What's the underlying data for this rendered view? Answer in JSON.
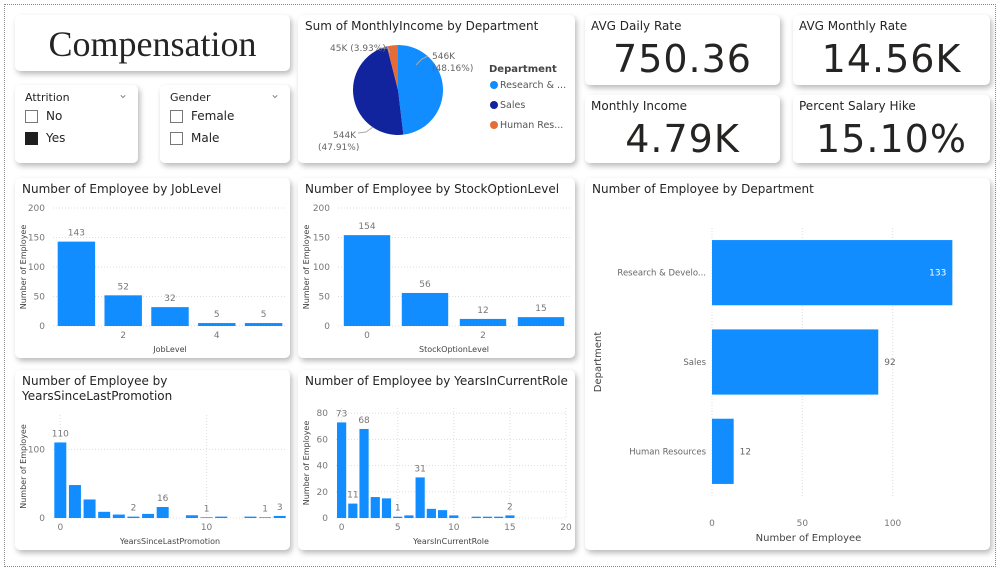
{
  "title": "Compensation",
  "slicers": [
    {
      "title": "Attrition",
      "options": [
        {
          "label": "No",
          "checked": false
        },
        {
          "label": "Yes",
          "checked": true
        }
      ]
    },
    {
      "title": "Gender",
      "options": [
        {
          "label": "Female",
          "checked": false
        },
        {
          "label": "Male",
          "checked": false
        }
      ]
    }
  ],
  "kpis": [
    {
      "label": "AVG Daily Rate",
      "value": "750.36"
    },
    {
      "label": "AVG Monthly Rate",
      "value": "14.56K"
    },
    {
      "label": "Monthly Income",
      "value": "4.79K"
    },
    {
      "label": "Percent Salary Hike",
      "value": "15.10%"
    }
  ],
  "colors": {
    "bar": "#118DFF",
    "research": "#118DFF",
    "sales": "#12239E",
    "hr": "#E66C37"
  },
  "chart_data": [
    {
      "id": "pie",
      "type": "pie",
      "title": "Sum of MonthlyIncome by Department",
      "legend_title": "Department",
      "legend_position": "right",
      "slices": [
        {
          "name": "Research & ...",
          "value": 546,
          "label": "546K",
          "pct": "(48.16%)",
          "color": "#118DFF"
        },
        {
          "name": "Sales",
          "value": 544,
          "label": "544K",
          "pct": "(47.91%)",
          "color": "#12239E"
        },
        {
          "name": "Human Res...",
          "value": 45,
          "label": "45K (3.93%)",
          "pct": "",
          "color": "#E66C37"
        }
      ]
    },
    {
      "id": "joblevel",
      "type": "bar",
      "title": "Number of Employee by JobLevel",
      "xlabel": "JobLevel",
      "ylabel": "Number of Employee",
      "x": [
        1,
        2,
        3,
        4,
        5
      ],
      "values": [
        143,
        52,
        32,
        5,
        5
      ],
      "data_labels": [
        "143",
        "52",
        "32",
        "5",
        "5"
      ],
      "xticks": [
        2,
        4
      ],
      "yticks": [
        0,
        50,
        100,
        150,
        200
      ],
      "ylim": [
        0,
        200
      ],
      "grid": true
    },
    {
      "id": "stock",
      "type": "bar",
      "title": "Number of Employee by StockOptionLevel",
      "xlabel": "StockOptionLevel",
      "ylabel": "Number of Employee",
      "x": [
        0,
        1,
        2,
        3
      ],
      "values": [
        154,
        56,
        12,
        15
      ],
      "data_labels": [
        "154",
        "56",
        "12",
        "15"
      ],
      "xticks": [
        0,
        2
      ],
      "yticks": [
        0,
        50,
        100,
        150,
        200
      ],
      "ylim": [
        0,
        200
      ],
      "grid": true
    },
    {
      "id": "promotion",
      "type": "bar",
      "title": "Number of Employee by YearsSinceLastPromotion",
      "xlabel": "YearsSinceLastPromotion",
      "ylabel": "Number of Employee",
      "x": [
        0,
        1,
        2,
        3,
        4,
        5,
        6,
        7,
        9,
        10,
        11,
        13,
        14,
        15
      ],
      "values": [
        110,
        48,
        27,
        9,
        5,
        2,
        6,
        16,
        4,
        1,
        2,
        2,
        1,
        3
      ],
      "data_labels": [
        "110",
        "",
        "",
        "",
        "",
        "2",
        "",
        "16",
        "",
        "1",
        "",
        "",
        "1",
        "3"
      ],
      "xticks": [
        0,
        10
      ],
      "yticks": [
        0,
        100
      ],
      "ylim": [
        0,
        150
      ],
      "xlim": [
        -0.5,
        15.5
      ],
      "grid": true
    },
    {
      "id": "role",
      "type": "bar",
      "title": "Number of Employee by YearsInCurrentRole",
      "xlabel": "YearsInCurrentRole",
      "ylabel": "Number of Employee",
      "x": [
        0,
        1,
        2,
        3,
        4,
        5,
        6,
        7,
        8,
        9,
        10,
        12,
        13,
        14,
        15
      ],
      "values": [
        73,
        11,
        68,
        16,
        15,
        1,
        2,
        31,
        7,
        6,
        2,
        1,
        1,
        1,
        2
      ],
      "data_labels": [
        "73",
        "11",
        "68",
        "",
        "",
        "1",
        "",
        "31",
        "",
        "",
        "",
        "",
        "",
        "",
        "2"
      ],
      "xticks": [
        0,
        5,
        10,
        15,
        20
      ],
      "yticks": [
        0,
        20,
        40,
        60,
        80
      ],
      "ylim": [
        0,
        84
      ],
      "xlim": [
        -0.5,
        20
      ],
      "grid": true
    },
    {
      "id": "dept",
      "type": "hbar",
      "title": "Number of Employee by Department",
      "xlabel": "Number of Employee",
      "ylabel": "Department",
      "categories": [
        "Research & Develo...",
        "Sales",
        "Human Resources"
      ],
      "values": [
        133,
        92,
        12
      ],
      "data_labels": [
        "133",
        "92",
        "12"
      ],
      "xticks": [
        0,
        50,
        100
      ],
      "xlim": [
        0,
        140
      ],
      "grid": true
    }
  ]
}
